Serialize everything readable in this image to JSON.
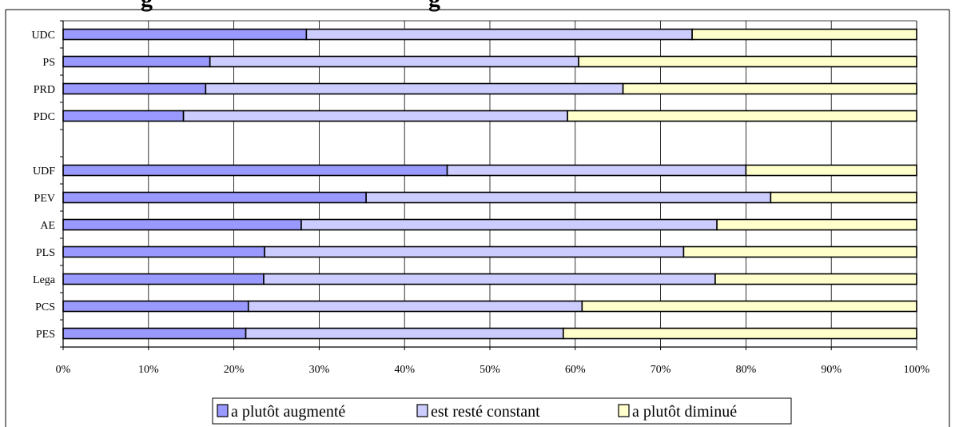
{
  "title_fragment": "g                                              g",
  "colors": {
    "series": [
      "#9999ff",
      "#ccccff",
      "#ffffcc"
    ],
    "bar_border": "#000000",
    "grid": "#000000",
    "background": "#ffffff"
  },
  "chart_data": {
    "type": "bar",
    "orientation": "horizontal",
    "stacked": "percent",
    "categories": [
      "UDC",
      "PS",
      "PRD",
      "PDC",
      "",
      "UDF",
      "PEV",
      "AE",
      "PLS",
      "Lega",
      "PCS",
      "PES"
    ],
    "series": [
      {
        "name": "a plutôt augmenté",
        "values": [
          28.5,
          17.2,
          16.7,
          14.1,
          null,
          45.0,
          35.5,
          27.9,
          23.6,
          23.5,
          21.7,
          21.4
        ]
      },
      {
        "name": "est resté constant",
        "values": [
          45.2,
          43.2,
          48.9,
          45.0,
          null,
          35.0,
          47.4,
          48.7,
          49.1,
          52.9,
          39.1,
          37.2
        ]
      },
      {
        "name": "a plutôt diminué",
        "values": [
          26.3,
          39.6,
          34.4,
          40.9,
          null,
          20.0,
          17.1,
          23.4,
          27.3,
          23.6,
          39.2,
          41.4
        ]
      }
    ],
    "xlim": [
      0,
      100
    ],
    "xticks": [
      "0%",
      "10%",
      "20%",
      "30%",
      "40%",
      "50%",
      "60%",
      "70%",
      "80%",
      "90%",
      "100%"
    ],
    "grid": true,
    "legend_position": "bottom"
  }
}
